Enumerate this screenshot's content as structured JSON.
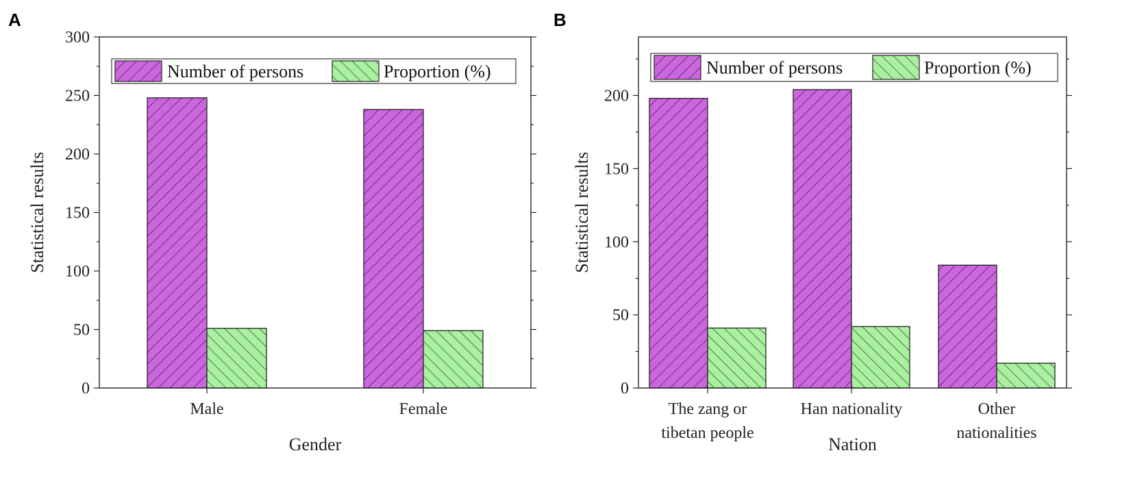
{
  "colors": {
    "series_a_fill": "#cc66dd",
    "series_a_hatch": "#3a1a55",
    "series_b_fill": "#aaf0a0",
    "series_b_hatch": "#1f4a1f",
    "axis": "#222222"
  },
  "chart_data": [
    {
      "panel_label": "A",
      "type": "bar",
      "title": "",
      "xlabel": "Gender",
      "ylabel": "Statistical results",
      "ylim": [
        0,
        300
      ],
      "yticks": [
        0,
        50,
        100,
        150,
        200,
        250,
        300
      ],
      "yticks_labels": [
        "0",
        "50",
        "100",
        "150",
        "200",
        "250",
        "300"
      ],
      "categories": [
        [
          "Male"
        ],
        [
          "Female"
        ]
      ],
      "series": [
        {
          "name": "Number of persons",
          "values": [
            248,
            238
          ]
        },
        {
          "name": "Proportion (%)",
          "values": [
            51,
            49
          ]
        }
      ],
      "legend": "top"
    },
    {
      "panel_label": "B",
      "type": "bar",
      "title": "",
      "xlabel": "Nation",
      "ylabel": "Statistical results",
      "ylim": [
        0,
        240
      ],
      "yticks": [
        0,
        50,
        100,
        150,
        200
      ],
      "yticks_labels": [
        "0",
        "50",
        "100",
        "150",
        "200"
      ],
      "categories": [
        [
          "The zang or",
          "tibetan people"
        ],
        [
          "Han nationality"
        ],
        [
          "Other",
          "nationalities"
        ]
      ],
      "series": [
        {
          "name": "Number of persons",
          "values": [
            198,
            204,
            84
          ]
        },
        {
          "name": "Proportion (%)",
          "values": [
            41,
            42,
            17
          ]
        }
      ],
      "legend": "top"
    }
  ]
}
